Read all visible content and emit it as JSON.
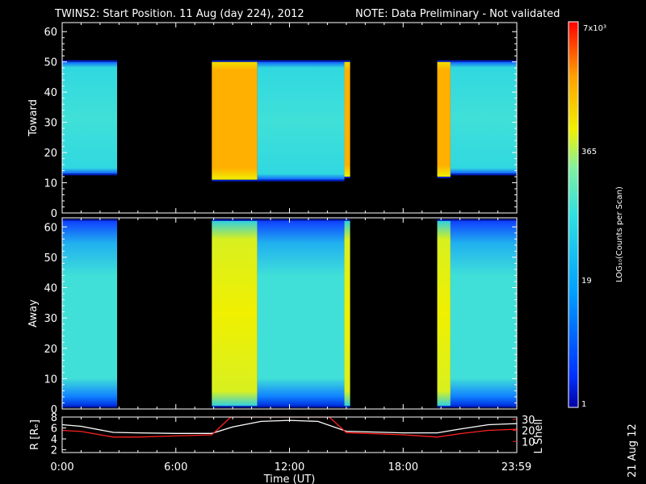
{
  "title": {
    "main": "TWINS2: Start Position. 11 Aug (day 224), 2012",
    "note": "NOTE: Data Preliminary - Not validated",
    "main_color": "#ffffff",
    "note_color": "#ff2020"
  },
  "colorbar": {
    "top_label": "7x10³",
    "labels": [
      "365",
      "19",
      "1"
    ],
    "axis_title": "LOG₁₀(Counts per Scan)",
    "colors": [
      "#0000a0",
      "#0030ff",
      "#00a0ff",
      "#30e0e0",
      "#80f0a0",
      "#f0f000",
      "#ffa000",
      "#ff0000"
    ]
  },
  "footer": {
    "date_stamp": "21 Aug 12"
  },
  "chart_data": [
    {
      "type": "heatmap",
      "ylabel": "Toward",
      "ylim": [
        0,
        63
      ],
      "yticks": [
        "0",
        "10",
        "20",
        "30",
        "40",
        "50",
        "60"
      ],
      "xlim_hours": [
        0,
        24
      ],
      "intervals": [
        {
          "start_hour": 0.0,
          "end_hour": 2.9,
          "level": "cyan",
          "y_range": [
            13,
            50
          ]
        },
        {
          "start_hour": 7.9,
          "end_hour": 10.3,
          "level": "orange",
          "y_range": [
            11,
            50
          ]
        },
        {
          "start_hour": 10.3,
          "end_hour": 14.9,
          "level": "cyan",
          "y_range": [
            11,
            50
          ]
        },
        {
          "start_hour": 14.9,
          "end_hour": 15.2,
          "level": "orange",
          "y_range": [
            12,
            50
          ]
        },
        {
          "start_hour": 19.8,
          "end_hour": 20.5,
          "level": "orange",
          "y_range": [
            12,
            50
          ]
        },
        {
          "start_hour": 20.5,
          "end_hour": 24.0,
          "level": "cyan",
          "y_range": [
            13,
            50
          ]
        }
      ]
    },
    {
      "type": "heatmap",
      "ylabel": "Away",
      "ylim": [
        0,
        63
      ],
      "yticks": [
        "0",
        "10",
        "20",
        "30",
        "40",
        "50",
        "60"
      ],
      "xlim_hours": [
        0,
        24
      ],
      "intervals": [
        {
          "start_hour": 0.0,
          "end_hour": 2.9,
          "level": "cyan",
          "y_range": [
            1,
            62
          ]
        },
        {
          "start_hour": 7.9,
          "end_hour": 10.3,
          "level": "yellow",
          "y_range": [
            1,
            62
          ]
        },
        {
          "start_hour": 10.3,
          "end_hour": 14.9,
          "level": "cyan",
          "y_range": [
            1,
            62
          ]
        },
        {
          "start_hour": 14.9,
          "end_hour": 15.2,
          "level": "yellow",
          "y_range": [
            1,
            62
          ]
        },
        {
          "start_hour": 19.8,
          "end_hour": 20.5,
          "level": "yellow",
          "y_range": [
            1,
            62
          ]
        },
        {
          "start_hour": 20.5,
          "end_hour": 24.0,
          "level": "cyan",
          "y_range": [
            1,
            62
          ]
        }
      ]
    },
    {
      "type": "line",
      "ylabel": "R [Rₑ]",
      "ylabel_right": "L Shell",
      "xlabel": "Time (UT)",
      "xticks": [
        "0:00",
        "6:00",
        "12:00",
        "18:00",
        "23:59"
      ],
      "xtick_hours": [
        0,
        6,
        12,
        18,
        23.983
      ],
      "ylim": [
        1.5,
        8
      ],
      "yticks": [
        "2",
        "4",
        "6",
        "8"
      ],
      "ylim_right": [
        0,
        32
      ],
      "yticks_right": [
        "10",
        "20",
        "30"
      ],
      "series": [
        {
          "color": "#ffffff",
          "axis": "left",
          "x": [
            0,
            1,
            2.7,
            4,
            6,
            7.9,
            9,
            10.5,
            12,
            13.5,
            15,
            18,
            19.8,
            21,
            22.5,
            24
          ],
          "y": [
            6.6,
            6.3,
            5.2,
            5.1,
            5.0,
            5.0,
            6.2,
            7.2,
            7.4,
            7.2,
            5.4,
            5.1,
            5.1,
            5.8,
            6.6,
            6.8
          ]
        },
        {
          "color": "#ff2020",
          "axis": "right",
          "x": [
            0,
            1,
            2.7,
            4,
            6,
            7.9,
            8.9,
            14.1,
            15,
            18,
            19.8,
            21,
            22.5,
            24
          ],
          "y": [
            20,
            19,
            14,
            14,
            15,
            16,
            32,
            32,
            18,
            16,
            14,
            17,
            20,
            21
          ]
        }
      ]
    }
  ]
}
